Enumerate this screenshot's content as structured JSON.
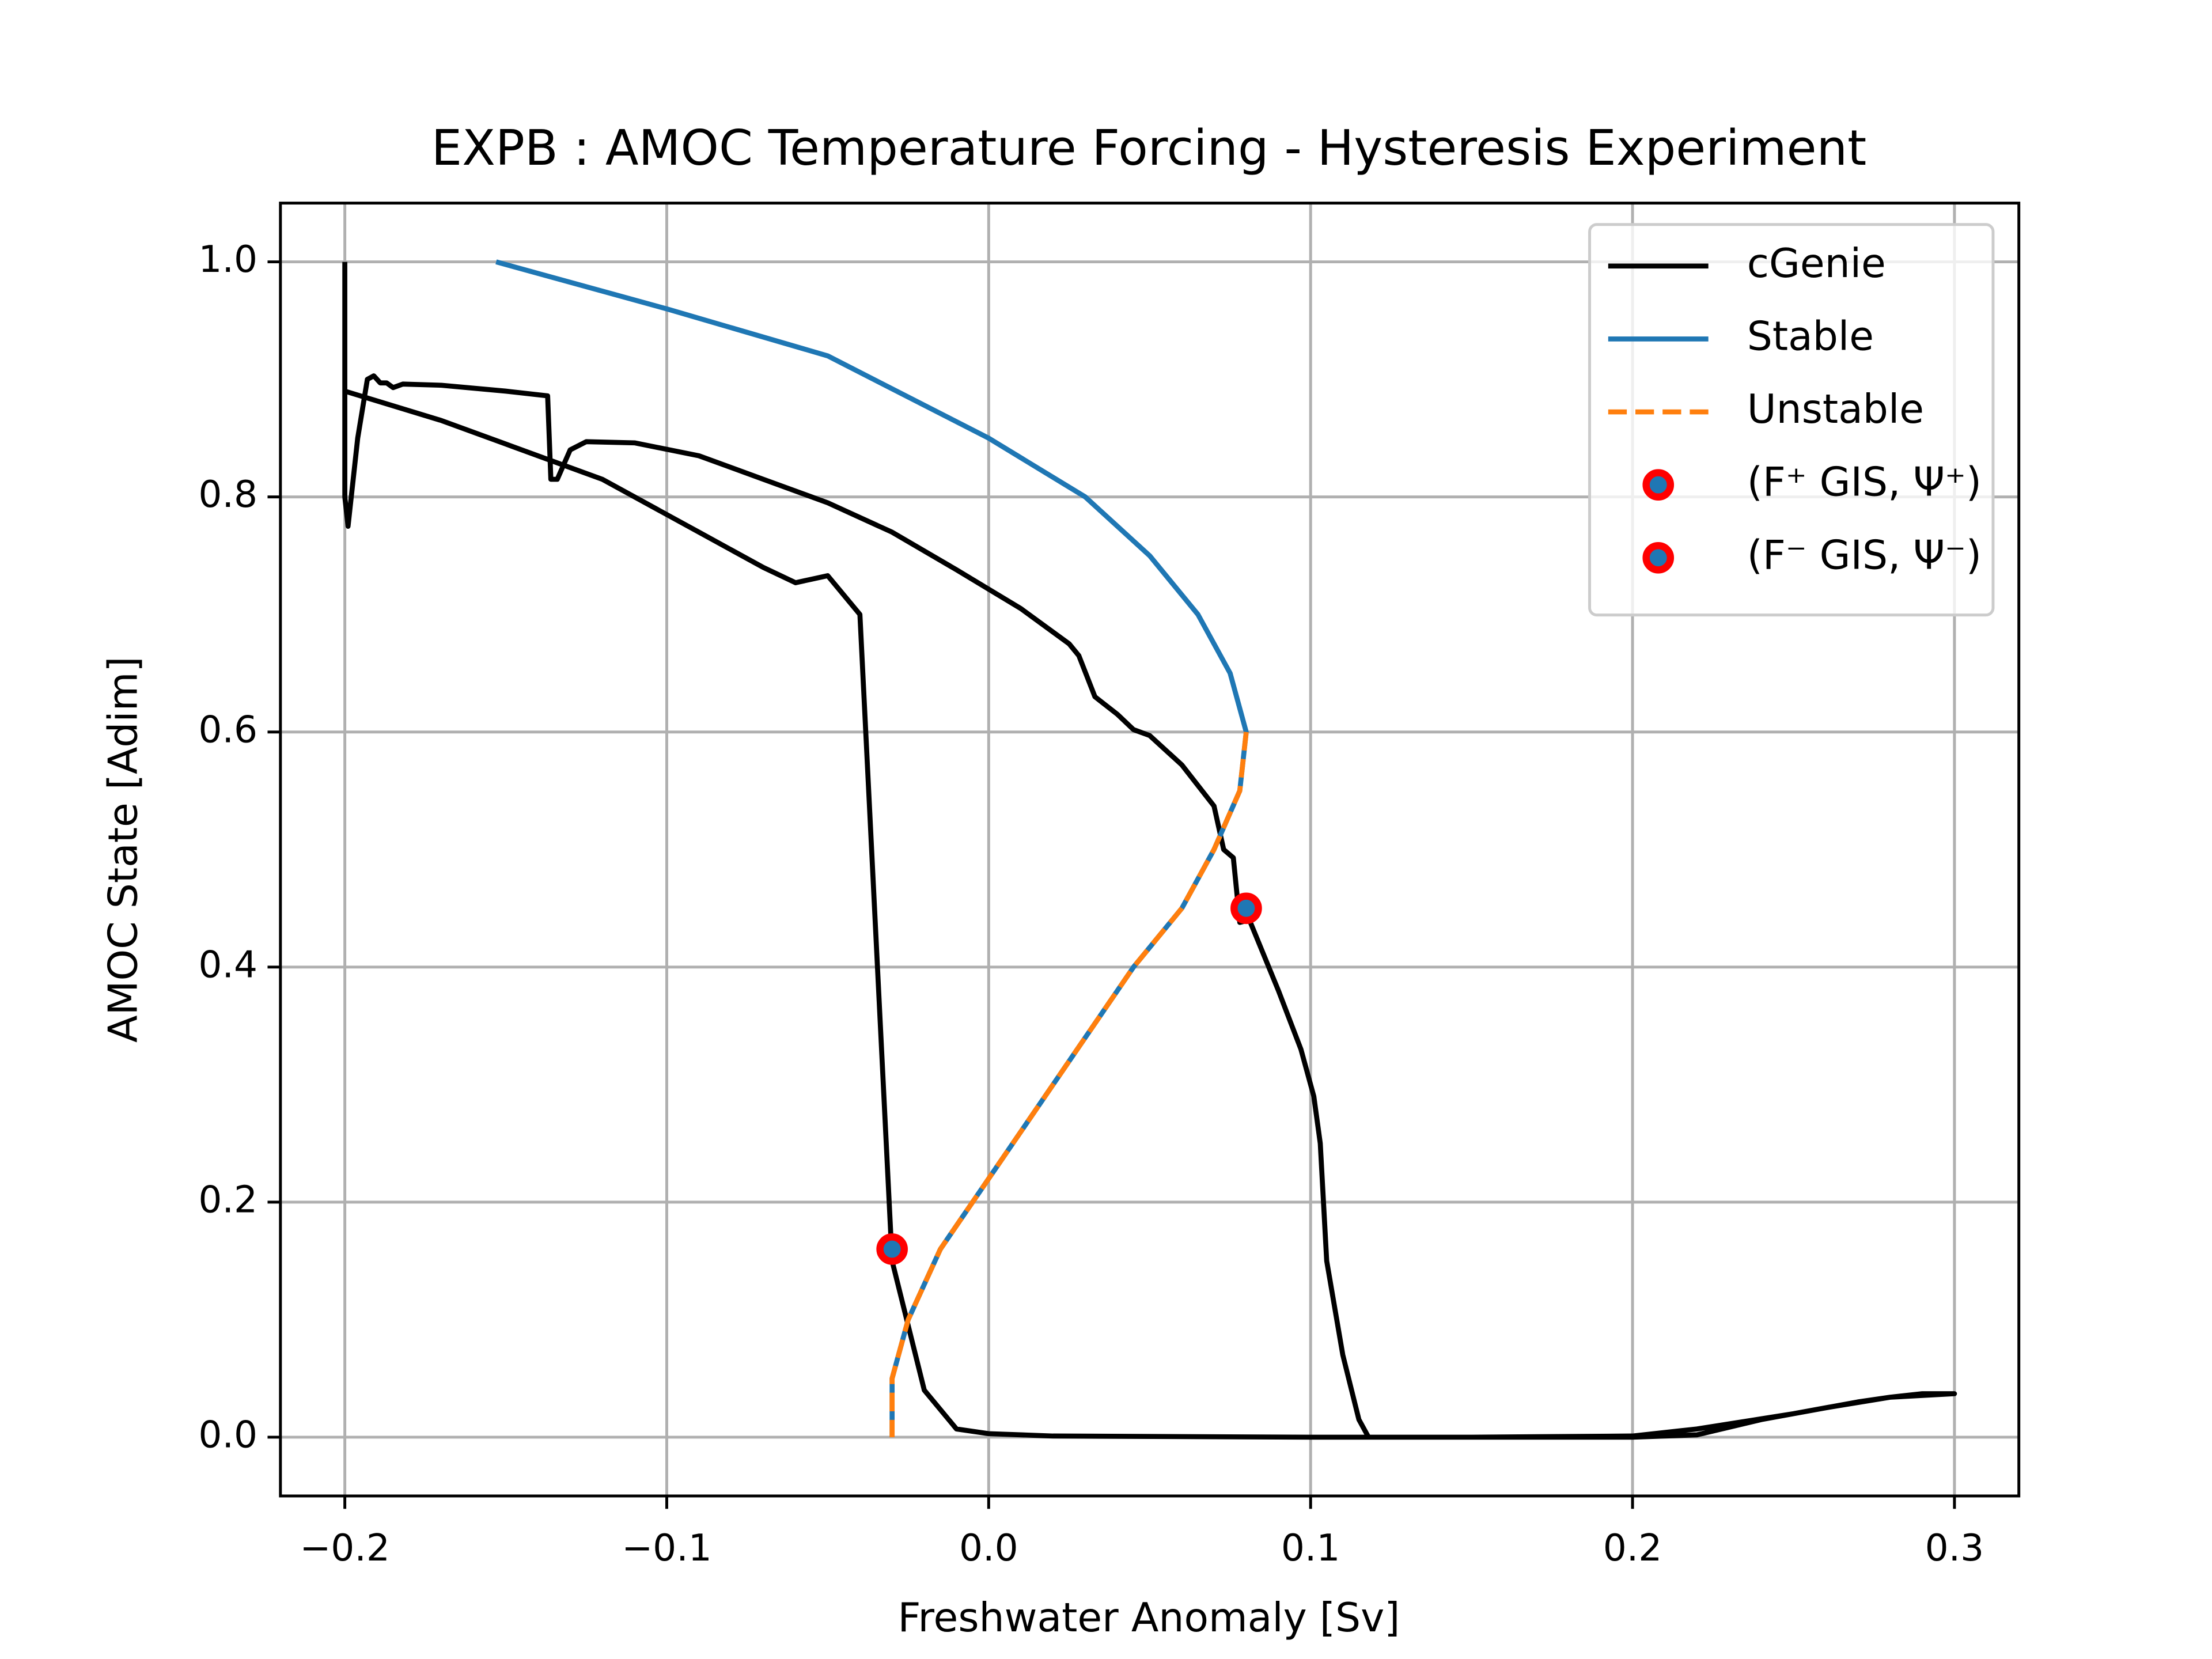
{
  "chart_data": {
    "type": "line",
    "title": "EXPB : AMOC Temperature Forcing - Hysteresis Experiment",
    "x_label": "Freshwater Anomaly [Sv]",
    "y_label": "AMOC State [Adim]",
    "xlim": [
      -0.22,
      0.32
    ],
    "ylim": [
      -0.05,
      1.05
    ],
    "xticks": [
      {
        "value": -0.2,
        "label": "−0.2"
      },
      {
        "value": -0.1,
        "label": "−0.1"
      },
      {
        "value": 0,
        "label": "0.0"
      },
      0.1,
      0.2,
      0.3
    ],
    "yticks": [
      {
        "value": 0,
        "label": "0.0"
      },
      0.2,
      0.4,
      0.6,
      0.8,
      {
        "value": 1,
        "label": "1.0"
      }
    ],
    "grid": true,
    "legend": "upper right",
    "series": [
      {
        "name": "cGenie",
        "type": "line",
        "color": "#000000",
        "dash": false,
        "x": [
          -0.2,
          -0.2,
          -0.199,
          -0.196,
          -0.193,
          -0.191,
          -0.189,
          -0.187,
          -0.185,
          -0.182,
          -0.17,
          -0.15,
          -0.137,
          -0.136,
          -0.134,
          -0.13,
          -0.125,
          -0.11,
          -0.09,
          -0.07,
          -0.05,
          -0.03,
          -0.01,
          0.01,
          0.025,
          0.028,
          0.033,
          0.04,
          0.045,
          0.05,
          0.06,
          0.07,
          0.073,
          0.076,
          0.078,
          0.081,
          0.09,
          0.097,
          0.101,
          0.103,
          0.105,
          0.11,
          0.115,
          0.118,
          0.15,
          0.2,
          0.22,
          0.25,
          0.27,
          0.28,
          0.29,
          0.3,
          0.28,
          0.26,
          0.24,
          0.22,
          0.2,
          0.1,
          0.02,
          0.0,
          -0.01,
          -0.02,
          -0.03,
          -0.04,
          -0.05,
          -0.055,
          -0.06,
          -0.07,
          -0.09,
          -0.1,
          -0.12,
          -0.15,
          -0.17,
          -0.2
        ],
        "values": [
          1.0,
          0.8,
          0.775,
          0.85,
          0.9,
          0.903,
          0.897,
          0.897,
          0.893,
          0.896,
          0.895,
          0.89,
          0.886,
          0.815,
          0.815,
          0.84,
          0.847,
          0.846,
          0.835,
          0.815,
          0.795,
          0.77,
          0.738,
          0.705,
          0.675,
          0.665,
          0.63,
          0.615,
          0.602,
          0.597,
          0.572,
          0.537,
          0.5,
          0.493,
          0.438,
          0.44,
          0.38,
          0.33,
          0.29,
          0.25,
          0.15,
          0.07,
          0.015,
          0.0,
          0.0,
          0.001,
          0.007,
          0.02,
          0.03,
          0.034,
          0.037,
          0.037,
          0.034,
          0.025,
          0.015,
          0.002,
          0.0,
          0.0,
          0.001,
          0.003,
          0.007,
          0.04,
          0.15,
          0.7,
          0.733,
          0.73,
          0.727,
          0.74,
          0.77,
          0.785,
          0.815,
          0.845,
          0.865,
          0.89
        ]
      },
      {
        "name": "Stable",
        "type": "line",
        "color": "#1f77b4",
        "dash": false,
        "x": [
          -0.153,
          -0.1,
          -0.05,
          0.0,
          0.03,
          0.05,
          0.065,
          0.075,
          0.08,
          0.078,
          0.07,
          0.06,
          0.045,
          0.03,
          0.015,
          0.0,
          -0.015,
          -0.025,
          -0.03,
          -0.03
        ],
        "values": [
          1.0,
          0.96,
          0.92,
          0.85,
          0.8,
          0.75,
          0.7,
          0.65,
          0.6,
          0.55,
          0.5,
          0.45,
          0.4,
          0.34,
          0.28,
          0.22,
          0.16,
          0.1,
          0.05,
          0.0
        ]
      },
      {
        "name": "Unstable",
        "type": "line",
        "color": "#ff7f0e",
        "dash": true,
        "x": [
          0.08,
          0.078,
          0.07,
          0.06,
          0.045,
          0.03,
          0.015,
          0.0,
          -0.015,
          -0.025,
          -0.03,
          -0.03
        ],
        "values": [
          0.6,
          0.55,
          0.5,
          0.45,
          0.4,
          0.34,
          0.28,
          0.22,
          0.16,
          0.1,
          0.05,
          0.0
        ]
      },
      {
        "name": "(F⁺ GIS, Ψ⁺)",
        "type": "scatter",
        "color": "#1f77b4",
        "edgecolor": "#ff0000",
        "x": [
          0.08
        ],
        "values": [
          0.45
        ]
      },
      {
        "name": "(F⁻ GIS, Ψ⁻)",
        "type": "scatter",
        "color": "#1f77b4",
        "edgecolor": "#ff0000",
        "x": [
          -0.03
        ],
        "values": [
          0.16
        ]
      }
    ]
  }
}
